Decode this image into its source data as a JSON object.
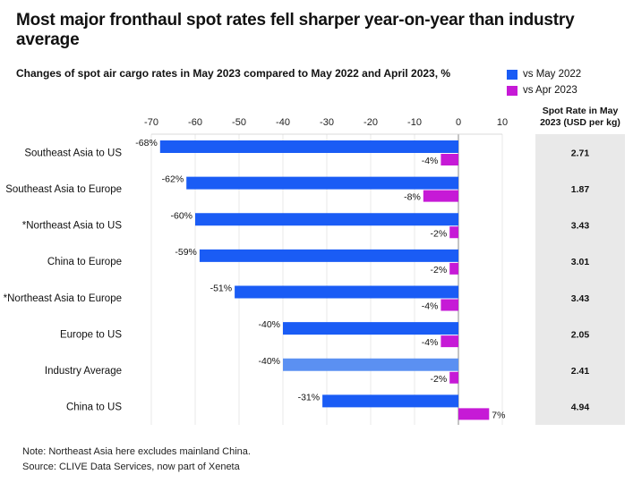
{
  "title": "Most major fronthaul spot rates fell sharper year-on-year than industry average",
  "side_header": "Spot Rate in May 2023 (USD per kg)",
  "footnote": {
    "note": "Note: Northeast Asia here excludes mainland China.",
    "source": "Source: CLIVE Data Services, now part of Xeneta"
  },
  "colors": {
    "may": "#1a5cf5",
    "apr": "#c61ad6",
    "average": "#5b90f2",
    "panel": "#e9e9e9"
  },
  "chart_data": {
    "type": "bar",
    "orientation": "horizontal",
    "title": "Changes of spot air cargo rates in May 2023 compared to May 2022 and April 2023, %",
    "xlim": [
      -70,
      10
    ],
    "xticks": [
      -70,
      -60,
      -50,
      -40,
      -30,
      -20,
      -10,
      0,
      10
    ],
    "categories": [
      "Southeast Asia to US",
      "Southeast Asia to Europe",
      "*Northeast Asia to US",
      "China to Europe",
      "*Northeast Asia to Europe",
      "Europe to US",
      "Industry Average",
      "China to US"
    ],
    "series": [
      {
        "name": "vs May 2022",
        "values": [
          -68,
          -62,
          -60,
          -59,
          -51,
          -40,
          -40,
          -31
        ],
        "labels": [
          "-68%",
          "-62%",
          "-60%",
          "-59%",
          "-51%",
          "-40%",
          "-40%",
          "-31%"
        ]
      },
      {
        "name": "vs Apr 2023",
        "values": [
          -4,
          -8,
          -2,
          -2,
          -4,
          -4,
          -2,
          7
        ],
        "labels": [
          "-4%",
          "-8%",
          "-2%",
          "-2%",
          "-4%",
          "-4%",
          "-2%",
          "7%"
        ]
      }
    ],
    "spot_rates": [
      "2.71",
      "1.87",
      "3.43",
      "3.01",
      "3.43",
      "2.05",
      "2.41",
      "4.94"
    ],
    "legend_position": "top-right",
    "grid": true
  }
}
